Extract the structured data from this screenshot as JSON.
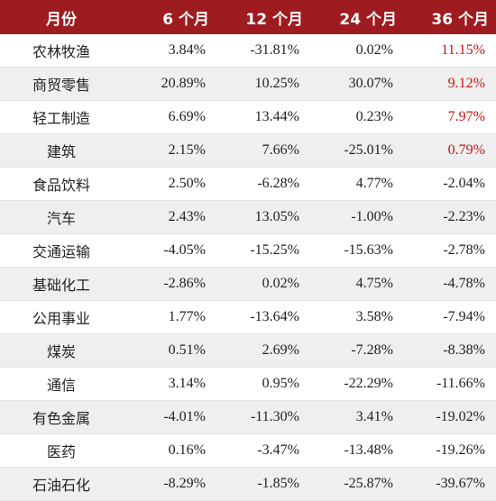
{
  "colors": {
    "header_bg": "#9e1b1f",
    "header_text": "#ffffff",
    "highlight": "#cc1111",
    "stripe": "#efefef"
  },
  "header": [
    "月份",
    "6 个月",
    "12 个月",
    "24 个月",
    "36 个月"
  ],
  "rows": [
    {
      "name": "农林牧渔",
      "v6": "3.84%",
      "v12": "-31.81%",
      "v24": "0.02%",
      "v36": "11.15%",
      "highlight36": true
    },
    {
      "name": "商贸零售",
      "v6": "20.89%",
      "v12": "10.25%",
      "v24": "30.07%",
      "v36": "9.12%",
      "highlight36": true
    },
    {
      "name": "轻工制造",
      "v6": "6.69%",
      "v12": "13.44%",
      "v24": "0.23%",
      "v36": "7.97%",
      "highlight36": true
    },
    {
      "name": "建筑",
      "v6": "2.15%",
      "v12": "7.66%",
      "v24": "-25.01%",
      "v36": "0.79%",
      "highlight36": true
    },
    {
      "name": "食品饮料",
      "v6": "2.50%",
      "v12": "-6.28%",
      "v24": "4.77%",
      "v36": "-2.04%",
      "highlight36": false
    },
    {
      "name": "汽车",
      "v6": "2.43%",
      "v12": "13.05%",
      "v24": "-1.00%",
      "v36": "-2.23%",
      "highlight36": false
    },
    {
      "name": "交通运输",
      "v6": "-4.05%",
      "v12": "-15.25%",
      "v24": "-15.63%",
      "v36": "-2.78%",
      "highlight36": false
    },
    {
      "name": "基础化工",
      "v6": "-2.86%",
      "v12": "0.02%",
      "v24": "4.75%",
      "v36": "-4.78%",
      "highlight36": false
    },
    {
      "name": "公用事业",
      "v6": "1.77%",
      "v12": "-13.64%",
      "v24": "3.58%",
      "v36": "-7.94%",
      "highlight36": false
    },
    {
      "name": "煤炭",
      "v6": "0.51%",
      "v12": "2.69%",
      "v24": "-7.28%",
      "v36": "-8.38%",
      "highlight36": false
    },
    {
      "name": "通信",
      "v6": "3.14%",
      "v12": "0.95%",
      "v24": "-22.29%",
      "v36": "-11.66%",
      "highlight36": false
    },
    {
      "name": "有色金属",
      "v6": "-4.01%",
      "v12": "-11.30%",
      "v24": "3.41%",
      "v36": "-19.02%",
      "highlight36": false
    },
    {
      "name": "医药",
      "v6": "0.16%",
      "v12": "-3.47%",
      "v24": "-13.48%",
      "v36": "-19.26%",
      "highlight36": false
    },
    {
      "name": "石油石化",
      "v6": "-8.29%",
      "v12": "-1.85%",
      "v24": "-25.87%",
      "v36": "-39.67%",
      "highlight36": false
    }
  ]
}
